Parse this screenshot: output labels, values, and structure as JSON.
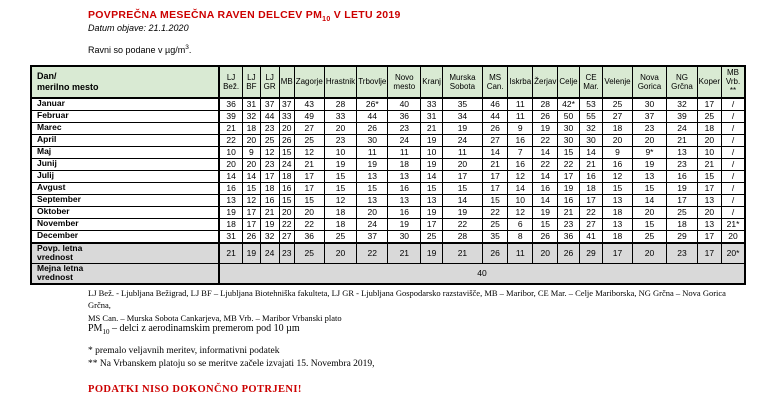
{
  "page": {
    "title": {
      "pre": "POVPREČNA MESEČNA RAVEN DELCEV PM",
      "sub": "10",
      "post": " V LETU 2019"
    },
    "date_line": "Datum objave: 21.1.2020",
    "units_line": {
      "pre": "Ravni so podane v µg/m",
      "sup": "3",
      "post": "."
    }
  },
  "table": {
    "corner_header": "Dan/\nmerilno mesto",
    "stations": [
      "LJ Bež.",
      "LJ BF",
      "LJ GR",
      "MB",
      "Zagorje",
      "Hrastnik",
      "Trbovlje",
      "Novo mesto",
      "Kranj",
      "Murska Sobota",
      "MS Can.",
      "Iskrba",
      "Žerjav",
      "Celje",
      "CE Mar.",
      "Velenje",
      "Nova Gorica",
      "NG Grčna",
      "Koper",
      "MB Vrb.\n**"
    ],
    "months": [
      {
        "label": "Januar",
        "values": [
          "36",
          "31",
          "37",
          "37",
          "43",
          "28",
          "26*",
          "40",
          "33",
          "35",
          "46",
          "11",
          "28",
          "42*",
          "53",
          "25",
          "30",
          "32",
          "17",
          "/"
        ]
      },
      {
        "label": "Februar",
        "values": [
          "39",
          "32",
          "44",
          "33",
          "49",
          "33",
          "44",
          "36",
          "31",
          "34",
          "44",
          "11",
          "26",
          "50",
          "55",
          "27",
          "37",
          "39",
          "25",
          "/"
        ]
      },
      {
        "label": "Marec",
        "values": [
          "21",
          "18",
          "23",
          "20",
          "27",
          "20",
          "26",
          "23",
          "21",
          "19",
          "26",
          "9",
          "19",
          "30",
          "32",
          "18",
          "23",
          "24",
          "18",
          "/"
        ]
      },
      {
        "label": "April",
        "values": [
          "22",
          "20",
          "25",
          "26",
          "25",
          "23",
          "30",
          "24",
          "19",
          "24",
          "27",
          "16",
          "22",
          "30",
          "30",
          "20",
          "20",
          "21",
          "20",
          "/"
        ]
      },
      {
        "label": "Maj",
        "values": [
          "10",
          "9",
          "12",
          "15",
          "12",
          "10",
          "11",
          "11",
          "10",
          "11",
          "14",
          "7",
          "14",
          "15",
          "14",
          "9",
          "9*",
          "13",
          "10",
          "/"
        ]
      },
      {
        "label": "Junij",
        "values": [
          "20",
          "20",
          "23",
          "24",
          "21",
          "19",
          "19",
          "18",
          "19",
          "20",
          "21",
          "16",
          "22",
          "22",
          "21",
          "16",
          "19",
          "23",
          "21",
          "/"
        ]
      },
      {
        "label": "Julij",
        "values": [
          "14",
          "14",
          "17",
          "18",
          "17",
          "15",
          "13",
          "13",
          "14",
          "17",
          "17",
          "12",
          "14",
          "17",
          "16",
          "12",
          "13",
          "16",
          "15",
          "/"
        ]
      },
      {
        "label": "Avgust",
        "values": [
          "16",
          "15",
          "18",
          "16",
          "17",
          "15",
          "15",
          "16",
          "15",
          "15",
          "17",
          "14",
          "16",
          "19",
          "18",
          "15",
          "15",
          "19",
          "17",
          "/"
        ]
      },
      {
        "label": "September",
        "values": [
          "13",
          "12",
          "16",
          "15",
          "15",
          "12",
          "13",
          "13",
          "13",
          "14",
          "15",
          "10",
          "14",
          "16",
          "17",
          "13",
          "14",
          "17",
          "13",
          "/"
        ]
      },
      {
        "label": "Oktober",
        "values": [
          "19",
          "17",
          "21",
          "20",
          "20",
          "18",
          "20",
          "16",
          "19",
          "19",
          "22",
          "12",
          "19",
          "21",
          "22",
          "18",
          "20",
          "25",
          "20",
          "/"
        ]
      },
      {
        "label": "November",
        "values": [
          "18",
          "17",
          "19",
          "22",
          "22",
          "18",
          "24",
          "19",
          "17",
          "22",
          "25",
          "6",
          "15",
          "23",
          "27",
          "13",
          "15",
          "18",
          "13",
          "21*"
        ]
      },
      {
        "label": "December",
        "values": [
          "31",
          "26",
          "32",
          "27",
          "36",
          "25",
          "37",
          "30",
          "25",
          "28",
          "35",
          "8",
          "26",
          "36",
          "41",
          "18",
          "25",
          "29",
          "17",
          "20"
        ]
      }
    ],
    "average_row": {
      "label": "Povp. letna\nvrednost",
      "values": [
        "21",
        "19",
        "24",
        "23",
        "25",
        "20",
        "22",
        "21",
        "19",
        "21",
        "26",
        "11",
        "20",
        "26",
        "29",
        "17",
        "20",
        "23",
        "17",
        "20*"
      ]
    },
    "limit_row": {
      "label": "Mejna letna\nvrednost",
      "value": "40"
    }
  },
  "legend": {
    "line1": "LJ Bež. - Ljubljana Bežigrad, LJ BF – Ljubljana Biotehniška fakulteta, LJ GR - Ljubljana Gospodarsko razstavišče, MB – Maribor, CE Mar. – Celje Mariborska, NG Grčna – Nova Gorica Grčna,",
    "line2": "MS Can. – Murska Sobota Cankarjeva, MB Vrb. – Maribor Vrbanski plato"
  },
  "pm_definition": {
    "pre": "PM",
    "sub": "10",
    "post": " – delci z aerodinamskim premerom pod 10 µm"
  },
  "notes": {
    "star": "* premalo veljavnih meritev, informativni podatek",
    "double_star": "** Na Vrbanskem platoju so se meritve začele izvajati 15. Novembra 2019,"
  },
  "warning": "PODATKI NISO DOKONČNO POTRJENI!",
  "colors": {
    "accent_red": "#cc0000",
    "header_green": "#d9ead3",
    "shaded_gray": "#d9d9d9"
  }
}
